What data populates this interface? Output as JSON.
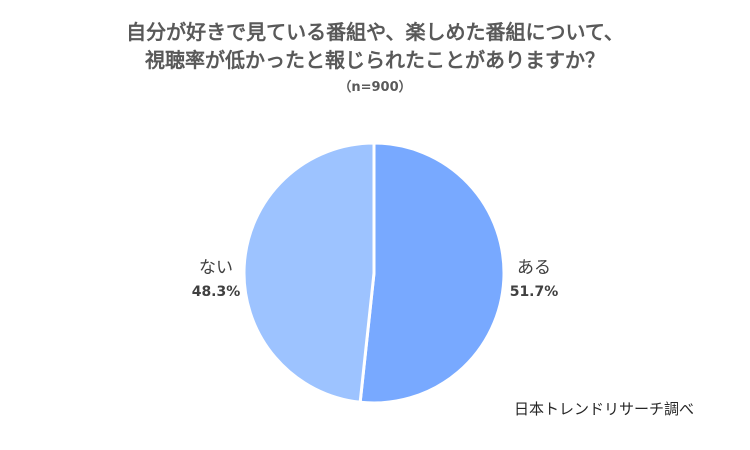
{
  "chart_data": {
    "type": "pie",
    "title_lines": [
      "自分が好きで見ている番組や、楽しめた番組について、",
      "視聴率が低かったと報じられたことがありますか？"
    ],
    "subtitle": "（n=900）",
    "slices": [
      {
        "label": "ある",
        "value": 51.7,
        "value_label": "51.7%",
        "color": "#78A9FF"
      },
      {
        "label": "ない",
        "value": 48.3,
        "value_label": "48.3%",
        "color": "#9DC3FF"
      }
    ],
    "source": "日本トレンドリサーチ調べ"
  }
}
